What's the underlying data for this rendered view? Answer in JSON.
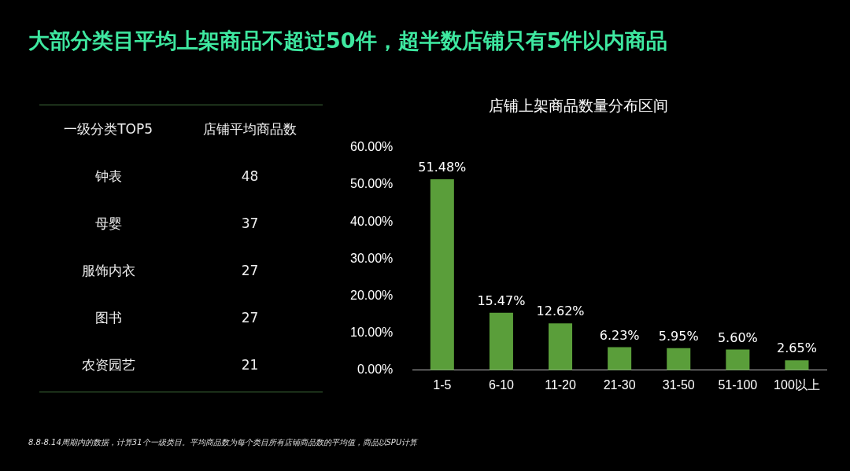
{
  "chart_data": [
    {
      "type": "other",
      "title": "大部分类目平均上架商品不超过50件，超半数店铺只有5件以内商品",
      "xlabel": "一级分类TOP5",
      "ylabel": "店铺平均商品数",
      "categories": [
        "钟表",
        "母婴",
        "服饰内衣",
        "图书",
        "农资园艺"
      ],
      "values": [
        48,
        37,
        27,
        27,
        21
      ],
      "data_labels": true,
      "annotations": [
        "8.8-8.14周期内的数据，计算31个一级类目。平均商品数为每个类目所有店铺商品数的平均值，商品以SPU计算"
      ]
    },
    {
      "type": "bar",
      "title": "店铺上架商品数量分布区间",
      "categories": [
        "1-5",
        "6-10",
        "11-20",
        "21-30",
        "31-50",
        "51-100",
        "100以上"
      ],
      "values": [
        51.48,
        15.47,
        12.62,
        6.23,
        5.95,
        5.6,
        2.65
      ],
      "value_labels": [
        "51.48%",
        "15.47%",
        "12.62%",
        "6.23%",
        "5.95%",
        "5.60%",
        "2.65%"
      ],
      "color": "#5a9e3a",
      "ylim": [
        0,
        60
      ],
      "yticks": [
        {
          "value": 0,
          "label": "0.00%"
        },
        {
          "value": 10,
          "label": "10.00%"
        },
        {
          "value": 20,
          "label": "20.00%"
        },
        {
          "value": 30,
          "label": "30.00%"
        },
        {
          "value": 40,
          "label": "40.00%"
        },
        {
          "value": 50,
          "label": "50.00%"
        },
        {
          "value": 60,
          "label": "60.00%"
        }
      ],
      "grid": false,
      "legend": false
    }
  ]
}
